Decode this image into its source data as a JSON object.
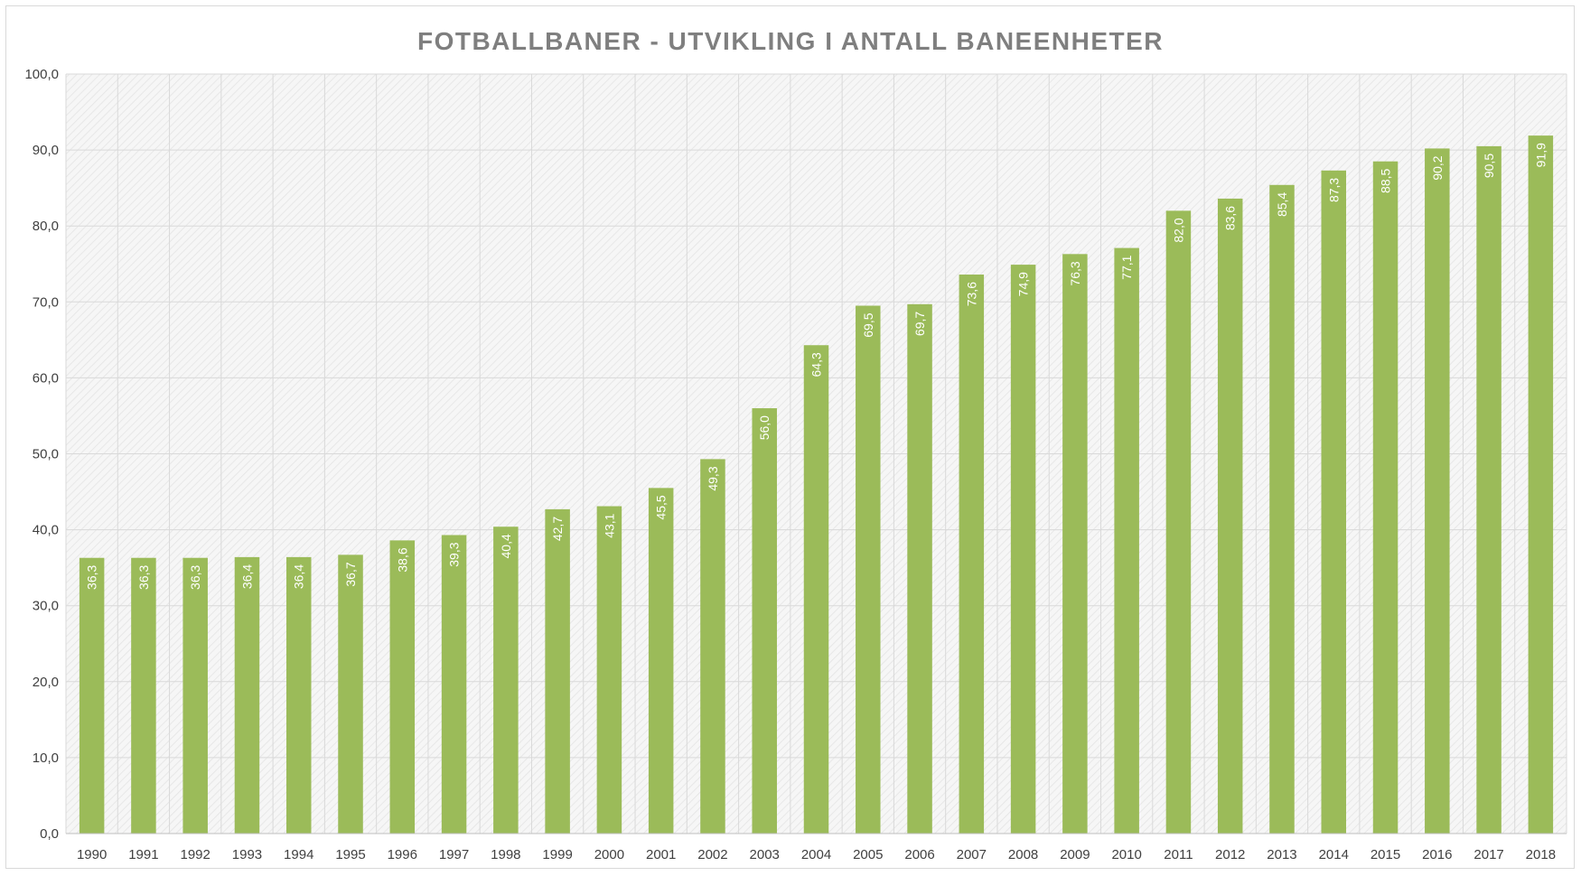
{
  "chart_data": {
    "type": "bar",
    "title": "FOTBALLBANER - UTVIKLING I ANTALL BANEENHETER",
    "xlabel": "",
    "ylabel": "",
    "ylim": [
      0,
      100
    ],
    "ytick_step": 10,
    "ytick_labels": [
      "0,0",
      "10,0",
      "20,0",
      "30,0",
      "40,0",
      "50,0",
      "60,0",
      "70,0",
      "80,0",
      "90,0",
      "100,0"
    ],
    "grid": true,
    "legend": "none",
    "bar_color": "#9bbb59",
    "categories": [
      "1990",
      "1991",
      "1992",
      "1993",
      "1994",
      "1995",
      "1996",
      "1997",
      "1998",
      "1999",
      "2000",
      "2001",
      "2002",
      "2003",
      "2004",
      "2005",
      "2006",
      "2007",
      "2008",
      "2009",
      "2010",
      "2011",
      "2012",
      "2013",
      "2014",
      "2015",
      "2016",
      "2017",
      "2018"
    ],
    "values": [
      36.3,
      36.3,
      36.3,
      36.4,
      36.4,
      36.7,
      38.6,
      39.3,
      40.4,
      42.7,
      43.1,
      45.5,
      49.3,
      56.0,
      64.3,
      69.5,
      69.7,
      73.6,
      74.9,
      76.3,
      77.1,
      82.0,
      83.6,
      85.4,
      87.3,
      88.5,
      90.2,
      90.5,
      91.9
    ],
    "data_labels": [
      "36,3",
      "36,3",
      "36,3",
      "36,4",
      "36,4",
      "36,7",
      "38,6",
      "39,3",
      "40,4",
      "42,7",
      "43,1",
      "45,5",
      "49,3",
      "56,0",
      "64,3",
      "69,5",
      "69,7",
      "73,6",
      "74,9",
      "76,3",
      "77,1",
      "82,0",
      "83,6",
      "85,4",
      "87,3",
      "88,5",
      "90,2",
      "90,5",
      "91,9"
    ]
  }
}
